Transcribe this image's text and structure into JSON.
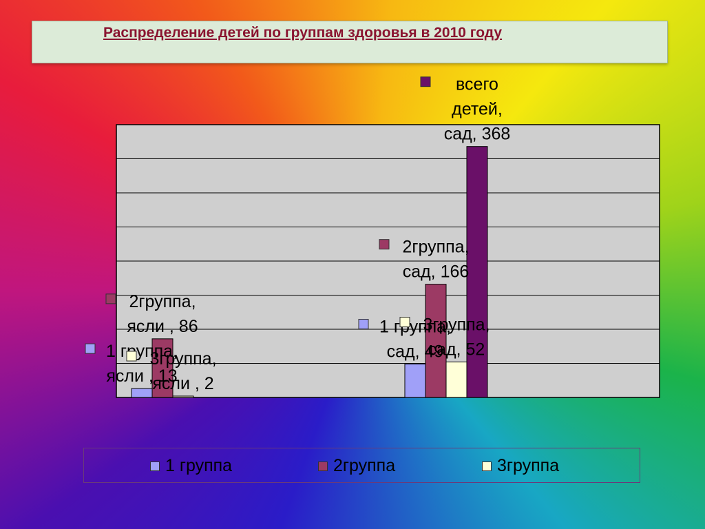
{
  "chart_data": {
    "type": "bar",
    "title": "Распределение детей по группам здоровья в 2010 году",
    "categories": [
      "ясли",
      "сад"
    ],
    "series": [
      {
        "name": "1 группа",
        "color": "#a0a0f8",
        "values": [
          13,
          49
        ]
      },
      {
        "name": "2группа",
        "color": "#9c3a64",
        "values": [
          86,
          166
        ]
      },
      {
        "name": "3группа",
        "color": "#ffffd8",
        "values": [
          2,
          52
        ]
      },
      {
        "name": "всего детей",
        "color": "#6a1068",
        "values": [
          null,
          368
        ]
      }
    ],
    "ylim": [
      0,
      400
    ],
    "grid": true,
    "legend": [
      "1 группа",
      "2группа",
      "3группа"
    ],
    "data_labels": [
      {
        "series": 0,
        "cat": 0,
        "lines": [
          "1 группа,",
          "ясли , 13"
        ]
      },
      {
        "series": 1,
        "cat": 0,
        "lines": [
          "2группа,",
          "ясли , 86"
        ]
      },
      {
        "series": 2,
        "cat": 0,
        "lines": [
          "3группа,",
          "ясли , 2"
        ]
      },
      {
        "series": 0,
        "cat": 1,
        "lines": [
          "1 группа,",
          "сад, 49"
        ]
      },
      {
        "series": 1,
        "cat": 1,
        "lines": [
          "2группа,",
          "сад, 166"
        ]
      },
      {
        "series": 2,
        "cat": 1,
        "lines": [
          "3группа,",
          "сад, 52"
        ]
      },
      {
        "series": 3,
        "cat": 1,
        "lines": [
          "всего",
          "детей,",
          "сад, 368"
        ]
      }
    ]
  }
}
